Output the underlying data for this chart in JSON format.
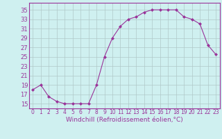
{
  "x": [
    0,
    1,
    2,
    3,
    4,
    5,
    6,
    7,
    8,
    9,
    10,
    11,
    12,
    13,
    14,
    15,
    16,
    17,
    18,
    19,
    20,
    21,
    22,
    23
  ],
  "y": [
    18.0,
    19.0,
    16.5,
    15.5,
    15.0,
    15.0,
    15.0,
    15.0,
    19.0,
    25.0,
    29.0,
    31.5,
    33.0,
    33.5,
    34.5,
    35.0,
    35.0,
    35.0,
    35.0,
    33.5,
    33.0,
    32.0,
    27.5,
    25.5
  ],
  "line_color": "#993399",
  "marker": "D",
  "marker_size": 2.0,
  "bg_color": "#cff0f0",
  "grid_color": "#b0c8c8",
  "xlabel": "Windchill (Refroidissement éolien,°C)",
  "xlabel_color": "#993399",
  "xlabel_fontsize": 6.5,
  "yticks": [
    15,
    17,
    19,
    21,
    23,
    25,
    27,
    29,
    31,
    33,
    35
  ],
  "ylim": [
    14.0,
    36.5
  ],
  "xlim": [
    -0.5,
    23.5
  ],
  "xticks": [
    0,
    1,
    2,
    3,
    4,
    5,
    6,
    7,
    8,
    9,
    10,
    11,
    12,
    13,
    14,
    15,
    16,
    17,
    18,
    19,
    20,
    21,
    22,
    23
  ],
  "tick_color": "#993399",
  "ytick_fontsize": 6.0,
  "xtick_fontsize": 5.5,
  "line_width": 0.8,
  "spine_color": "#993399"
}
